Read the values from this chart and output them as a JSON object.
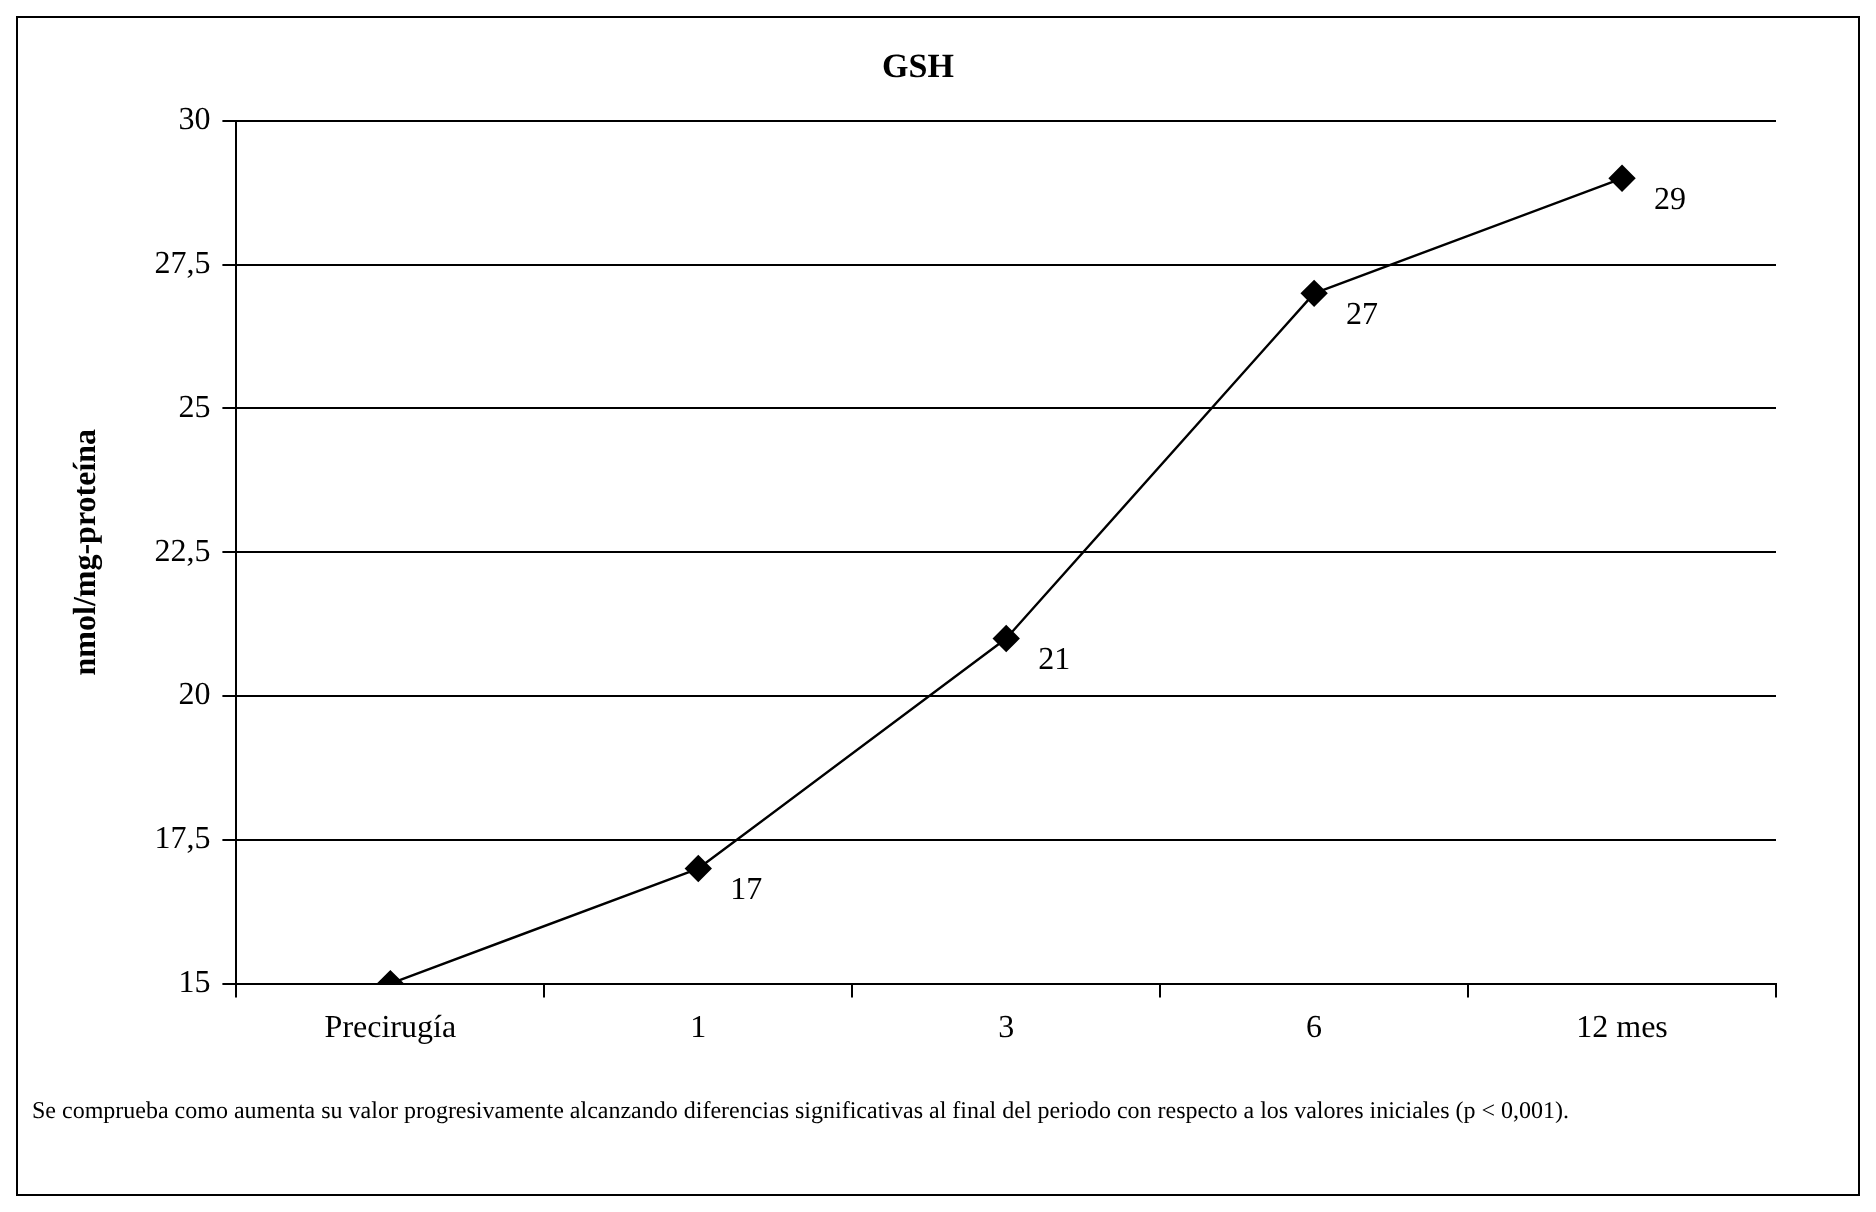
{
  "chart_data": {
    "type": "line",
    "title": "GSH",
    "ylabel": "nmol/mg-proteína",
    "categories": [
      "Precirugía",
      "1",
      "3",
      "6",
      "12 mes"
    ],
    "series": [
      {
        "color": "#000000",
        "values": [
          15,
          17,
          21,
          27,
          29
        ],
        "value_labels": [
          null,
          "17",
          "21",
          "27",
          "29"
        ]
      }
    ],
    "ylim": [
      15,
      30
    ],
    "yticks": [
      15,
      {
        "value": 17.5,
        "label": "17,5"
      },
      20,
      {
        "value": 22.5,
        "label": "22,5"
      },
      25,
      {
        "value": 27.5,
        "label": "27,5"
      },
      30
    ],
    "grid": "y",
    "legend": false,
    "marker": "diamond",
    "line_style": "solid",
    "annotations": [
      "Se comprueba como aumenta su valor progresivamente alcanzando diferencias significativas al final del periodo con respecto a los valores iniciales (p < 0,001)."
    ]
  }
}
